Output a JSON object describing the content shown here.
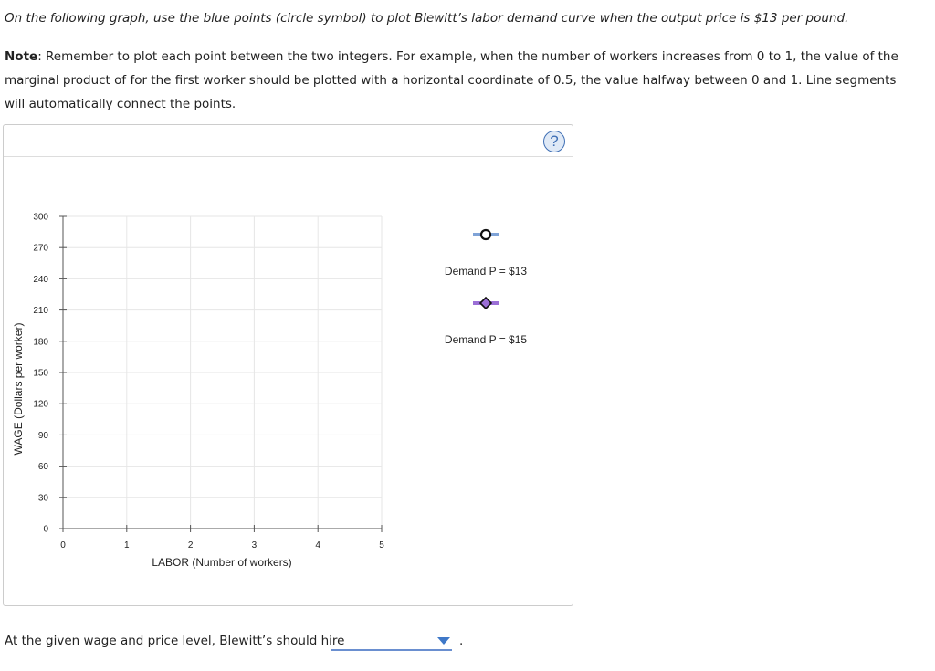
{
  "instruction": "On the following graph, use the blue points (circle symbol) to plot Blewitt’s labor demand curve when the output price is $13 per pound.",
  "note": {
    "label": "Note",
    "text": ": Remember to plot each point between the two integers. For example, when the number of workers increases from 0 to 1, the value of the marginal product of for the first worker should be plotted with a horizontal coordinate of 0.5, the value halfway between 0 and 1. Line segments will automatically connect the points."
  },
  "help_icon": "?",
  "chart_data": {
    "type": "line",
    "xlabel": "LABOR (Number of workers)",
    "ylabel": "WAGE (Dollars per worker)",
    "xlim": [
      0,
      5
    ],
    "ylim": [
      0,
      300
    ],
    "x_ticks": [
      "0",
      "1",
      "2",
      "3",
      "4",
      "5"
    ],
    "y_ticks": [
      "300",
      "270",
      "240",
      "210",
      "180",
      "150",
      "120",
      "90",
      "60",
      "30",
      "0"
    ],
    "grid": true,
    "legend_position": "right",
    "series": [
      {
        "name": "Demand P = $13",
        "symbol": "circle",
        "color": "#7fa3d7",
        "points": []
      },
      {
        "name": "Demand P = $15",
        "symbol": "diamond",
        "color": "#9b6fd6",
        "points": []
      }
    ]
  },
  "question": {
    "text": "At the given wage and price level, Blewitt’s should hire",
    "selected": "",
    "period": "."
  }
}
